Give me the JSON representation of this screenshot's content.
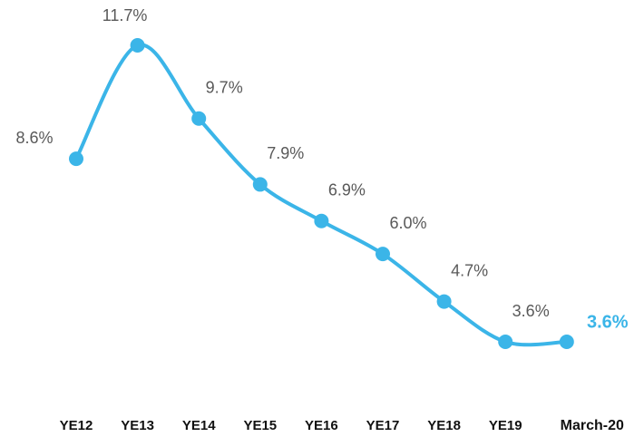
{
  "chart_data": {
    "type": "line",
    "categories": [
      "YE12",
      "YE13",
      "YE14",
      "YE15",
      "YE16",
      "YE17",
      "YE18",
      "YE19",
      "March-20"
    ],
    "values": [
      8.6,
      11.7,
      9.7,
      7.9,
      6.9,
      6.0,
      4.7,
      3.6,
      3.6
    ],
    "value_labels": [
      "8.6%",
      "11.7%",
      "9.7%",
      "7.9%",
      "6.9%",
      "6.0%",
      "4.7%",
      "3.6%",
      "3.6%"
    ],
    "color": "#3bb5e8"
  }
}
